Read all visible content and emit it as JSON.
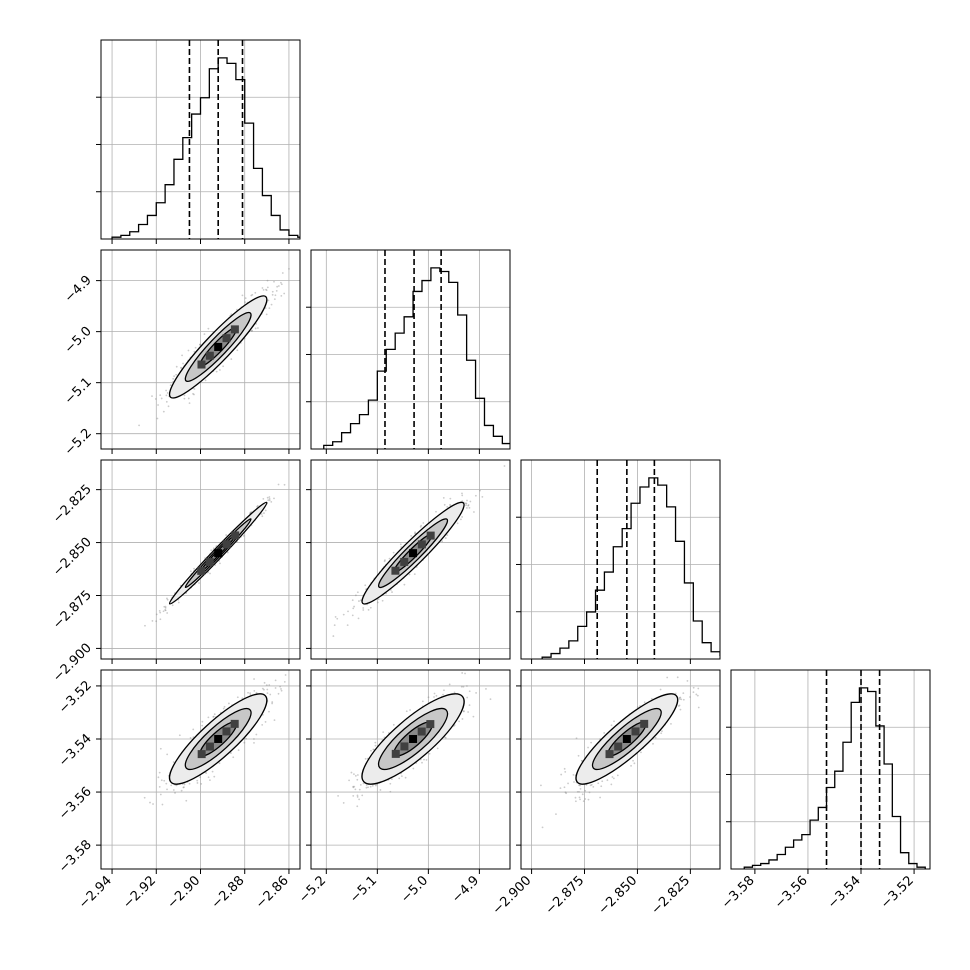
{
  "chart_data": {
    "type": "corner",
    "parameters": 4,
    "histogram_style": "step",
    "quantile_lines": "dashed",
    "grid": true,
    "colors": {
      "ink": "#000000",
      "grid": "#b0b0b0",
      "samples": "#8c8c8c"
    },
    "axes": [
      {
        "range": [
          -2.945,
          -2.855
        ],
        "ticks": [
          -2.94,
          -2.92,
          -2.9,
          -2.88,
          -2.86
        ],
        "tick_labels": [
          "−2.94",
          "−2.92",
          "−2.90",
          "−2.88",
          "−2.86"
        ]
      },
      {
        "range": [
          -5.23,
          -4.84
        ],
        "ticks": [
          -5.2,
          -5.1,
          -5.0,
          -4.9
        ],
        "tick_labels": [
          "−5.2",
          "−5.1",
          "−5.0",
          "−4.9"
        ]
      },
      {
        "range": [
          -2.905,
          -2.811
        ],
        "ticks": [
          -2.9,
          -2.875,
          -2.85,
          -2.825
        ],
        "tick_labels": [
          "−2.900",
          "−2.875",
          "−2.850",
          "−2.825"
        ]
      },
      {
        "range": [
          -3.589,
          -3.514
        ],
        "ticks": [
          -3.58,
          -3.56,
          -3.54,
          -3.52
        ],
        "tick_labels": [
          "−3.58",
          "−3.56",
          "−3.54",
          "−3.52"
        ]
      }
    ],
    "means": [
      -2.892,
      -5.03,
      -2.855,
      -3.54
    ],
    "sigmas": [
      0.011,
      0.05,
      0.012,
      0.0085
    ],
    "skew_bottom_row": -0.4,
    "quantiles": [
      [
        -2.905,
        -2.892,
        -2.881
      ],
      [
        -5.085,
        -5.028,
        -4.975
      ],
      [
        -2.869,
        -2.855,
        -2.842
      ],
      [
        -3.553,
        -3.54,
        -3.533
      ]
    ],
    "histograms": [
      {
        "bin_start": -2.94,
        "bin_width": 0.004,
        "counts": [
          0.01,
          0.02,
          0.04,
          0.08,
          0.13,
          0.2,
          0.3,
          0.44,
          0.56,
          0.69,
          0.78,
          0.94,
          1.0,
          0.97,
          0.88,
          0.64,
          0.39,
          0.24,
          0.13,
          0.05,
          0.02,
          0.01,
          0.005
        ]
      },
      {
        "bin_start": -5.205,
        "bin_width": 0.0175,
        "counts": [
          0.02,
          0.04,
          0.09,
          0.14,
          0.19,
          0.27,
          0.43,
          0.55,
          0.64,
          0.73,
          0.87,
          0.93,
          1.0,
          0.98,
          0.92,
          0.74,
          0.49,
          0.28,
          0.13,
          0.07,
          0.03,
          0.02
        ]
      },
      {
        "bin_start": -2.895,
        "bin_width": 0.0042,
        "counts": [
          0.01,
          0.03,
          0.06,
          0.1,
          0.18,
          0.26,
          0.38,
          0.48,
          0.62,
          0.72,
          0.86,
          0.95,
          1.0,
          0.96,
          0.84,
          0.65,
          0.42,
          0.21,
          0.09,
          0.04,
          0.02,
          0.01
        ]
      },
      {
        "bin_start": -3.584,
        "bin_width": 0.0031,
        "counts": [
          0.01,
          0.02,
          0.03,
          0.05,
          0.08,
          0.12,
          0.16,
          0.19,
          0.27,
          0.34,
          0.45,
          0.54,
          0.7,
          0.92,
          1.0,
          0.98,
          0.79,
          0.58,
          0.29,
          0.09,
          0.03,
          0.01
        ]
      }
    ],
    "correlations": [
      [
        1.0,
        0.93,
        0.99,
        0.86
      ],
      [
        0.93,
        1.0,
        0.95,
        0.83
      ],
      [
        0.99,
        0.95,
        1.0,
        0.87
      ],
      [
        0.86,
        0.83,
        0.87,
        1.0
      ]
    ]
  }
}
